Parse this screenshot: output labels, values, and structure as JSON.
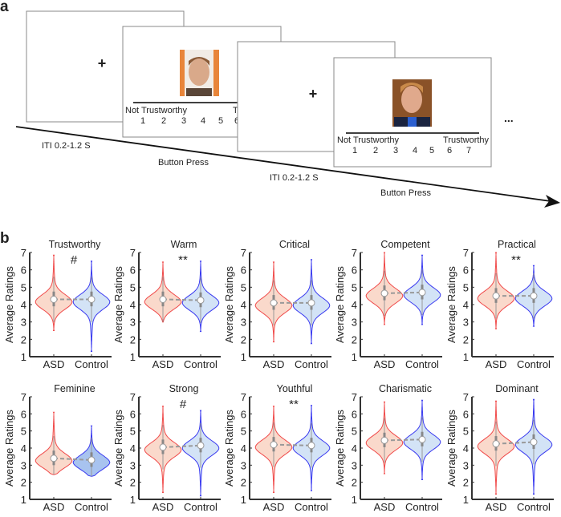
{
  "panel_a": {
    "label": "a",
    "rating_left": "Not Trustworthy",
    "rating_right": "Trustworthy",
    "rating_left_2": "Not Trustworthy",
    "rating_right_partial": "T",
    "scale": [
      "1",
      "2",
      "3",
      "4",
      "5",
      "6",
      "7"
    ],
    "iti_1": "ITI 0.2-1.2 S",
    "button_1": "Button Press",
    "iti_2": "ITI 0.2-1.2 S",
    "button_2": "Button Press",
    "ellipsis": "...",
    "fixation": "+"
  },
  "panel_b": {
    "label": "b",
    "ylabel": "Average Ratings",
    "groups": [
      "ASD",
      "Control"
    ],
    "yticks": [
      "1",
      "2",
      "3",
      "4",
      "5",
      "6",
      "7"
    ]
  },
  "colors": {
    "asd_stroke": "#f04a4a",
    "asd_fill": "#fad9cb",
    "control_stroke": "#3a3af0",
    "control_fill": "#d3e3f6",
    "control_fill_dark": "#a8c3ef"
  },
  "chart_data": [
    {
      "type": "violin",
      "title": "Trustworthy",
      "sig": "#",
      "ylim": [
        1,
        7
      ],
      "ylabel": "Average Ratings",
      "categories": [
        "ASD",
        "Control"
      ],
      "series": [
        {
          "name": "ASD",
          "median": 4.3,
          "min": 2.5,
          "max": 6.85
        },
        {
          "name": "Control",
          "median": 4.3,
          "min": 1.3,
          "max": 6.5
        }
      ]
    },
    {
      "type": "violin",
      "title": "Warm",
      "sig": "**",
      "ylim": [
        1,
        7
      ],
      "ylabel": "Average Ratings",
      "categories": [
        "ASD",
        "Control"
      ],
      "series": [
        {
          "name": "ASD",
          "median": 4.3,
          "min": 3.0,
          "max": 6.45
        },
        {
          "name": "Control",
          "median": 4.25,
          "min": 2.45,
          "max": 6.5
        }
      ]
    },
    {
      "type": "violin",
      "title": "Critical",
      "sig": "",
      "ylim": [
        1,
        7
      ],
      "ylabel": "Average Ratings",
      "categories": [
        "ASD",
        "Control"
      ],
      "series": [
        {
          "name": "ASD",
          "median": 4.1,
          "min": 1.85,
          "max": 6.45
        },
        {
          "name": "Control",
          "median": 4.1,
          "min": 1.75,
          "max": 6.6
        }
      ]
    },
    {
      "type": "violin",
      "title": "Competent",
      "sig": "",
      "ylim": [
        1,
        7
      ],
      "ylabel": "Average Ratings",
      "categories": [
        "ASD",
        "Control"
      ],
      "series": [
        {
          "name": "ASD",
          "median": 4.65,
          "min": 2.85,
          "max": 7.0
        },
        {
          "name": "Control",
          "median": 4.7,
          "min": 2.85,
          "max": 6.85
        }
      ]
    },
    {
      "type": "violin",
      "title": "Practical",
      "sig": "**",
      "ylim": [
        1,
        7
      ],
      "ylabel": "Average Ratings",
      "categories": [
        "ASD",
        "Control"
      ],
      "series": [
        {
          "name": "ASD",
          "median": 4.5,
          "min": 2.6,
          "max": 7.0
        },
        {
          "name": "Control",
          "median": 4.5,
          "min": 2.75,
          "max": 6.25
        }
      ]
    },
    {
      "type": "violin",
      "title": "Feminine",
      "sig": "",
      "ylim": [
        1,
        7
      ],
      "ylabel": "Average Ratings",
      "categories": [
        "ASD",
        "Control"
      ],
      "series": [
        {
          "name": "ASD",
          "median": 3.4,
          "min": 2.45,
          "max": 6.1
        },
        {
          "name": "Control",
          "median": 3.3,
          "min": 2.35,
          "max": 5.3
        }
      ]
    },
    {
      "type": "violin",
      "title": "Strong",
      "sig": "#",
      "ylim": [
        1,
        7
      ],
      "ylabel": "Average Ratings",
      "categories": [
        "ASD",
        "Control"
      ],
      "series": [
        {
          "name": "ASD",
          "median": 4.05,
          "min": 1.4,
          "max": 6.45
        },
        {
          "name": "Control",
          "median": 4.15,
          "min": 1.2,
          "max": 6.2
        }
      ]
    },
    {
      "type": "violin",
      "title": "Youthful",
      "sig": "**",
      "ylim": [
        1,
        7
      ],
      "ylabel": "Average Ratings",
      "categories": [
        "ASD",
        "Control"
      ],
      "series": [
        {
          "name": "ASD",
          "median": 4.2,
          "min": 1.4,
          "max": 6.45
        },
        {
          "name": "Control",
          "median": 4.15,
          "min": 1.5,
          "max": 6.5
        }
      ]
    },
    {
      "type": "violin",
      "title": "Charismatic",
      "sig": "",
      "ylim": [
        1,
        7
      ],
      "ylabel": "Average Ratings",
      "categories": [
        "ASD",
        "Control"
      ],
      "series": [
        {
          "name": "ASD",
          "median": 4.45,
          "min": 2.5,
          "max": 6.7
        },
        {
          "name": "Control",
          "median": 4.5,
          "min": 2.15,
          "max": 6.8
        }
      ]
    },
    {
      "type": "violin",
      "title": "Dominant",
      "sig": "",
      "ylim": [
        1,
        7
      ],
      "ylabel": "Average Ratings",
      "categories": [
        "ASD",
        "Control"
      ],
      "series": [
        {
          "name": "ASD",
          "median": 4.25,
          "min": 1.3,
          "max": 6.75
        },
        {
          "name": "Control",
          "median": 4.35,
          "min": 1.3,
          "max": 6.85
        }
      ]
    }
  ]
}
